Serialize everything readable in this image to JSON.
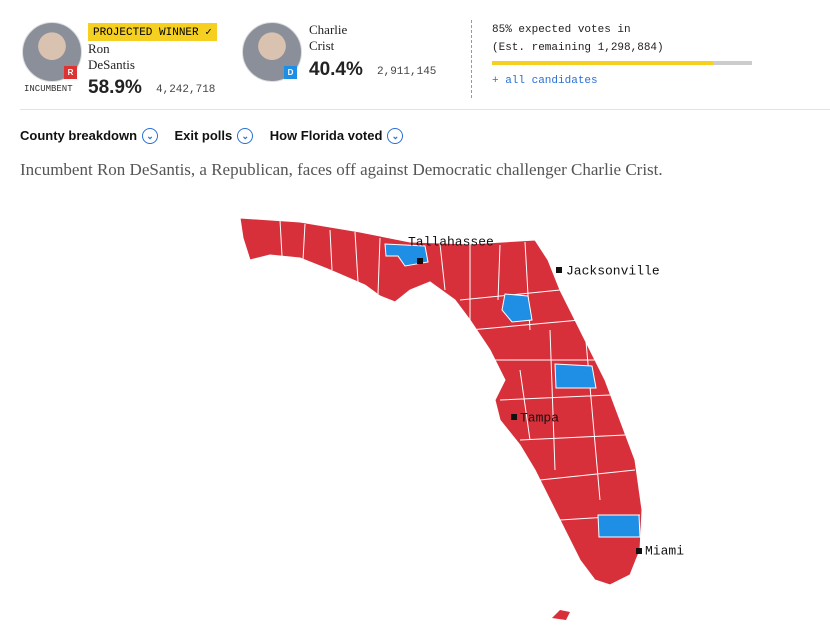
{
  "header": {
    "winner_badge": "PROJECTED WINNER"
  },
  "candidates": [
    {
      "first": "Ron",
      "last": "DeSantis",
      "party": "R",
      "status": "INCUMBENT",
      "pct": "58.9%",
      "votes": "4,242,718"
    },
    {
      "first": "Charlie",
      "last": "Crist",
      "party": "D",
      "pct": "40.4%",
      "votes": "2,911,145"
    }
  ],
  "reporting": {
    "line1": "85% expected votes in",
    "line2": "(Est. remaining 1,298,884)",
    "link": "+ all candidates"
  },
  "tabs": [
    "County breakdown",
    "Exit polls",
    "How Florida voted"
  ],
  "description": "Incumbent Ron DeSantis, a Republican, faces off against Democratic challenger Charlie Crist.",
  "map": {
    "cities": [
      "Tallahassee",
      "Jacksonville",
      "Tampa",
      "Miami"
    ]
  }
}
